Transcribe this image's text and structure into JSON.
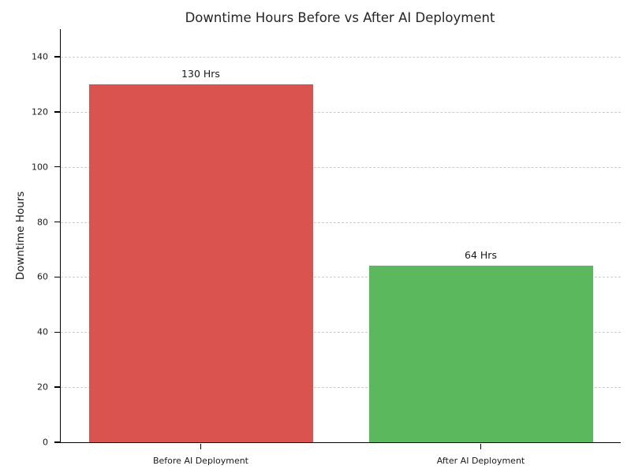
{
  "chart_data": {
    "type": "bar",
    "title": "Downtime Hours Before vs After AI Deployment",
    "xlabel": "",
    "ylabel": "Downtime Hours",
    "categories": [
      "Before AI Deployment",
      "After AI Deployment"
    ],
    "values": [
      130,
      64
    ],
    "value_labels": [
      "130 Hrs",
      "64 Hrs"
    ],
    "bar_colors": [
      "#d9534f",
      "#5cb85c"
    ],
    "ylim": [
      0,
      150
    ],
    "yticks": [
      0,
      20,
      40,
      60,
      80,
      100,
      120,
      140
    ],
    "grid": "horizontal dashed gridlines at y ticks",
    "grid_color": "#cccccc",
    "legend": "none",
    "background_color": "#ffffff",
    "text_color": "#262626"
  }
}
